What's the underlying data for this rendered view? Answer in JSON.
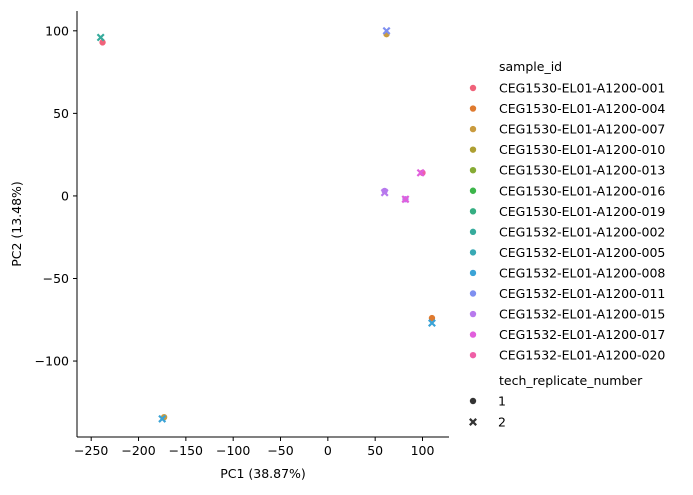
{
  "chart_data": {
    "type": "scatter",
    "xlabel": "PC1 (38.87%)",
    "ylabel": "PC2 (13.48%)",
    "xlim": [
      -265,
      128
    ],
    "ylim": [
      -146,
      112
    ],
    "xticks": [
      -250,
      -200,
      -150,
      -100,
      -50,
      0,
      50,
      100
    ],
    "xtick_labels": [
      "−250",
      "−200",
      "−150",
      "−100",
      "−50",
      "0",
      "50",
      "100"
    ],
    "yticks": [
      100,
      50,
      0,
      -50,
      -100
    ],
    "ytick_labels": [
      "100",
      "50",
      "0",
      "−50",
      "−100"
    ],
    "grid": false,
    "legend_placement": "right",
    "hue_legend": {
      "title": "sample_id",
      "entries": [
        {
          "name": "CEG1530-EL01-A1200-001",
          "color": "#f0627a"
        },
        {
          "name": "CEG1530-EL01-A1200-004",
          "color": "#df7a2f"
        },
        {
          "name": "CEG1530-EL01-A1200-007",
          "color": "#c99b3f"
        },
        {
          "name": "CEG1530-EL01-A1200-010",
          "color": "#ad9f32"
        },
        {
          "name": "CEG1530-EL01-A1200-013",
          "color": "#86ab34"
        },
        {
          "name": "CEG1530-EL01-A1200-016",
          "color": "#3cb54a"
        },
        {
          "name": "CEG1530-EL01-A1200-019",
          "color": "#35ae82"
        },
        {
          "name": "CEG1532-EL01-A1200-002",
          "color": "#36ab9c"
        },
        {
          "name": "CEG1532-EL01-A1200-005",
          "color": "#38a9b4"
        },
        {
          "name": "CEG1532-EL01-A1200-008",
          "color": "#3ba3d6"
        },
        {
          "name": "CEG1532-EL01-A1200-011",
          "color": "#7e8ff0"
        },
        {
          "name": "CEG1532-EL01-A1200-015",
          "color": "#b779ed"
        },
        {
          "name": "CEG1532-EL01-A1200-017",
          "color": "#e15fdc"
        },
        {
          "name": "CEG1532-EL01-A1200-020",
          "color": "#ef5fa6"
        }
      ]
    },
    "style_legend": {
      "title": "tech_replicate_number",
      "entries": [
        {
          "name": "1",
          "marker": "circle"
        },
        {
          "name": "2",
          "marker": "x"
        }
      ]
    },
    "points": [
      {
        "x": -238,
        "y": 93,
        "sample": 0,
        "replicate": 1
      },
      {
        "x": -240,
        "y": 96,
        "sample": 7,
        "replicate": 2
      },
      {
        "x": 62,
        "y": 98,
        "sample": 2,
        "replicate": 1
      },
      {
        "x": 62,
        "y": 100,
        "sample": 10,
        "replicate": 2
      },
      {
        "x": -173,
        "y": -134,
        "sample": 2,
        "replicate": 1
      },
      {
        "x": -175,
        "y": -135,
        "sample": 9,
        "replicate": 2
      },
      {
        "x": 110,
        "y": -74,
        "sample": 1,
        "replicate": 1
      },
      {
        "x": 110,
        "y": -77,
        "sample": 9,
        "replicate": 2
      },
      {
        "x": 60,
        "y": 3,
        "sample": 11,
        "replicate": 1
      },
      {
        "x": 60,
        "y": 2,
        "sample": 11,
        "replicate": 2
      },
      {
        "x": 82,
        "y": -2,
        "sample": 11,
        "replicate": 1
      },
      {
        "x": 82,
        "y": -2,
        "sample": 12,
        "replicate": 2
      },
      {
        "x": 100,
        "y": 14,
        "sample": 13,
        "replicate": 1
      },
      {
        "x": 98,
        "y": 14,
        "sample": 12,
        "replicate": 2
      }
    ]
  }
}
